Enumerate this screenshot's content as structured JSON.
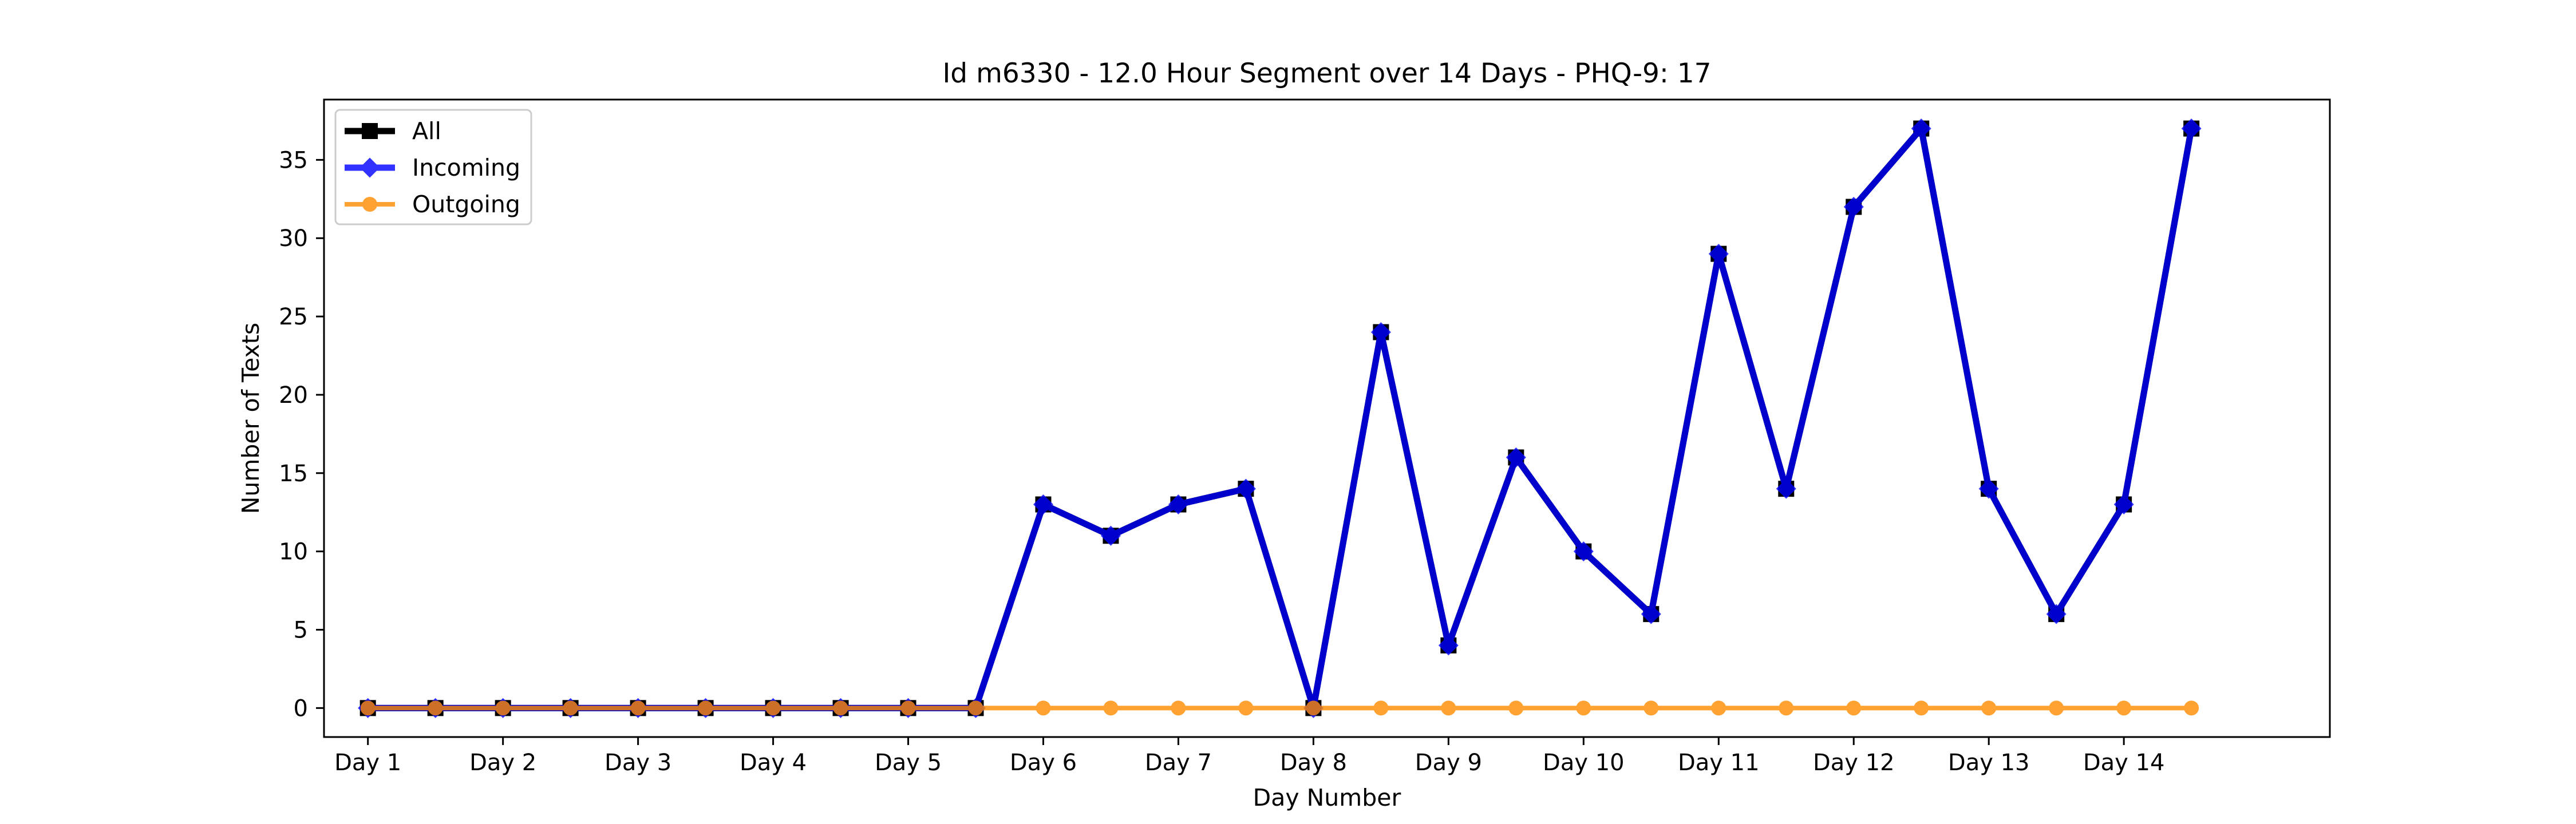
{
  "chart_data": {
    "type": "line",
    "title": "Id m6330 - 12.0 Hour Segment over 14 Days - PHQ-9: 17",
    "xlabel": "Day Number",
    "ylabel": "Number of Texts",
    "xlim": [
      0.35,
      30.05
    ],
    "ylim": [
      -1.85,
      38.85
    ],
    "x_ticks": [
      1,
      3,
      5,
      7,
      9,
      11,
      13,
      15,
      17,
      19,
      21,
      23,
      25,
      27
    ],
    "x_tick_labels": [
      "Day 1",
      "Day 2",
      "Day 3",
      "Day 4",
      "Day 5",
      "Day 6",
      "Day 7",
      "Day 8",
      "Day 9",
      "Day 10",
      "Day 11",
      "Day 12",
      "Day 13",
      "Day 14"
    ],
    "y_ticks": [
      0,
      5,
      10,
      15,
      20,
      25,
      30,
      35
    ],
    "x": [
      1,
      2,
      3,
      4,
      5,
      6,
      7,
      8,
      9,
      10,
      11,
      12,
      13,
      14,
      15,
      16,
      17,
      18,
      19,
      20,
      21,
      22,
      23,
      24,
      25,
      26,
      27,
      28
    ],
    "series": [
      {
        "name": "All",
        "color": "#000000",
        "marker": "square",
        "values": [
          0,
          0,
          0,
          0,
          0,
          0,
          0,
          0,
          0,
          0,
          13,
          11,
          13,
          14,
          0,
          24,
          4,
          16,
          10,
          6,
          29,
          14,
          32,
          37,
          14,
          6,
          13,
          37
        ]
      },
      {
        "name": "Incoming",
        "color": "#0000ff",
        "marker": "diamond",
        "values": [
          0,
          0,
          0,
          0,
          0,
          0,
          0,
          0,
          0,
          0,
          13,
          11,
          13,
          14,
          0,
          24,
          4,
          16,
          10,
          6,
          29,
          14,
          32,
          37,
          14,
          6,
          13,
          37
        ]
      },
      {
        "name": "Outgoing",
        "color": "#ff8c00",
        "marker": "circle",
        "values": [
          0,
          0,
          0,
          0,
          0,
          0,
          0,
          0,
          0,
          0,
          0,
          0,
          0,
          0,
          0,
          0,
          0,
          0,
          0,
          0,
          0,
          0,
          0,
          0,
          0,
          0,
          0,
          0
        ]
      }
    ],
    "grid": false,
    "legend_position": "top-left"
  }
}
